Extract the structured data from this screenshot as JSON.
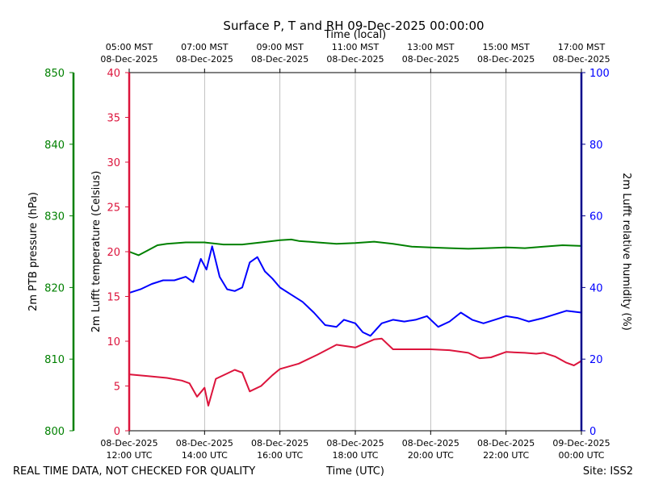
{
  "chart_data": {
    "type": "line",
    "title": "Surface P, T and RH 09-Dec-2025 00:00:00",
    "top_axis_label": "Time (local)",
    "bottom_axis_label": "Time (UTC)",
    "footer_left": "REAL TIME DATA, NOT CHECKED FOR QUALITY",
    "footer_right": "Site: ISS2",
    "x_range_hours_utc": [
      12,
      24
    ],
    "bottom_ticks": [
      {
        "hour": 12,
        "line1": "08-Dec-2025",
        "line2": "12:00 UTC"
      },
      {
        "hour": 14,
        "line1": "08-Dec-2025",
        "line2": "14:00 UTC"
      },
      {
        "hour": 16,
        "line1": "08-Dec-2025",
        "line2": "16:00 UTC"
      },
      {
        "hour": 18,
        "line1": "08-Dec-2025",
        "line2": "18:00 UTC"
      },
      {
        "hour": 20,
        "line1": "08-Dec-2025",
        "line2": "20:00 UTC"
      },
      {
        "hour": 22,
        "line1": "08-Dec-2025",
        "line2": "22:00 UTC"
      },
      {
        "hour": 24,
        "line1": "09-Dec-2025",
        "line2": "00:00 UTC"
      }
    ],
    "top_ticks": [
      {
        "hour": 12,
        "line1": "05:00 MST",
        "line2": "08-Dec-2025"
      },
      {
        "hour": 14,
        "line1": "07:00 MST",
        "line2": "08-Dec-2025"
      },
      {
        "hour": 16,
        "line1": "09:00 MST",
        "line2": "08-Dec-2025"
      },
      {
        "hour": 18,
        "line1": "11:00 MST",
        "line2": "08-Dec-2025"
      },
      {
        "hour": 20,
        "line1": "13:00 MST",
        "line2": "08-Dec-2025"
      },
      {
        "hour": 22,
        "line1": "15:00 MST",
        "line2": "08-Dec-2025"
      },
      {
        "hour": 24,
        "line1": "17:00 MST",
        "line2": "08-Dec-2025"
      }
    ],
    "axes": {
      "pressure": {
        "label": "2m PTB pressure (hPa)",
        "color": "#008000",
        "ylim": [
          800,
          850
        ],
        "ticks": [
          800,
          810,
          820,
          830,
          840,
          850
        ]
      },
      "temperature": {
        "label": "2m Lufft temperature (Celsius)",
        "color": "#dc143c",
        "ylim": [
          0,
          40
        ],
        "ticks": [
          0,
          5,
          10,
          15,
          20,
          25,
          30,
          35,
          40
        ]
      },
      "humidity": {
        "label": "2m Lufft relative humidity (%)",
        "color": "#0000ff",
        "ylim": [
          0,
          100
        ],
        "ticks": [
          0,
          20,
          40,
          60,
          80,
          100
        ]
      }
    },
    "series": [
      {
        "name": "pressure",
        "axis": "pressure",
        "color": "#008000",
        "x": [
          12.0,
          12.25,
          12.5,
          12.75,
          13.0,
          13.5,
          14.0,
          14.5,
          15.0,
          15.5,
          16.0,
          16.3,
          16.5,
          17.0,
          17.5,
          18.0,
          18.5,
          19.0,
          19.5,
          20.0,
          20.5,
          21.0,
          21.5,
          22.0,
          22.5,
          23.0,
          23.5,
          24.0
        ],
        "values": [
          825.0,
          824.5,
          825.2,
          825.9,
          826.1,
          826.3,
          826.3,
          826.0,
          826.0,
          826.3,
          826.6,
          826.7,
          826.5,
          826.3,
          826.1,
          826.2,
          826.4,
          826.1,
          825.7,
          825.6,
          825.5,
          825.4,
          825.5,
          825.6,
          825.5,
          825.7,
          825.9,
          825.8
        ]
      },
      {
        "name": "temperature",
        "axis": "temperature",
        "color": "#dc143c",
        "x": [
          12.0,
          12.5,
          13.0,
          13.4,
          13.6,
          13.8,
          14.0,
          14.1,
          14.3,
          14.6,
          14.8,
          15.0,
          15.2,
          15.5,
          15.8,
          16.0,
          16.5,
          17.0,
          17.5,
          18.0,
          18.5,
          18.7,
          19.0,
          19.5,
          20.0,
          20.5,
          21.0,
          21.3,
          21.6,
          22.0,
          22.5,
          22.8,
          23.0,
          23.3,
          23.6,
          23.8,
          24.0
        ],
        "values": [
          6.3,
          6.1,
          5.9,
          5.6,
          5.3,
          3.8,
          4.8,
          2.8,
          5.8,
          6.4,
          6.8,
          6.5,
          4.4,
          5.0,
          6.2,
          6.9,
          7.5,
          8.5,
          9.6,
          9.3,
          10.2,
          10.3,
          9.1,
          9.1,
          9.1,
          9.0,
          8.7,
          8.1,
          8.2,
          8.8,
          8.7,
          8.6,
          8.7,
          8.3,
          7.6,
          7.3,
          7.8
        ]
      },
      {
        "name": "humidity",
        "axis": "humidity",
        "color": "#0000ff",
        "x": [
          12.0,
          12.3,
          12.6,
          12.9,
          13.2,
          13.5,
          13.7,
          13.9,
          14.05,
          14.2,
          14.4,
          14.6,
          14.8,
          15.0,
          15.2,
          15.4,
          15.6,
          15.8,
          16.0,
          16.3,
          16.6,
          16.9,
          17.2,
          17.5,
          17.7,
          18.0,
          18.2,
          18.4,
          18.7,
          19.0,
          19.3,
          19.6,
          19.9,
          20.2,
          20.5,
          20.8,
          21.1,
          21.4,
          21.7,
          22.0,
          22.3,
          22.6,
          23.0,
          23.3,
          23.6,
          24.0
        ],
        "values": [
          38.5,
          39.5,
          41.0,
          42.0,
          42.0,
          43.0,
          41.5,
          48.0,
          45.0,
          51.5,
          43.0,
          39.5,
          39.0,
          40.0,
          47.0,
          48.5,
          44.5,
          42.5,
          40.0,
          38.0,
          36.0,
          33.0,
          29.5,
          29.0,
          31.0,
          30.0,
          27.5,
          26.5,
          30.0,
          31.0,
          30.5,
          31.0,
          32.0,
          29.0,
          30.5,
          33.0,
          31.0,
          30.0,
          31.0,
          32.0,
          31.5,
          30.5,
          31.5,
          32.5,
          33.5,
          33.0
        ]
      }
    ]
  }
}
